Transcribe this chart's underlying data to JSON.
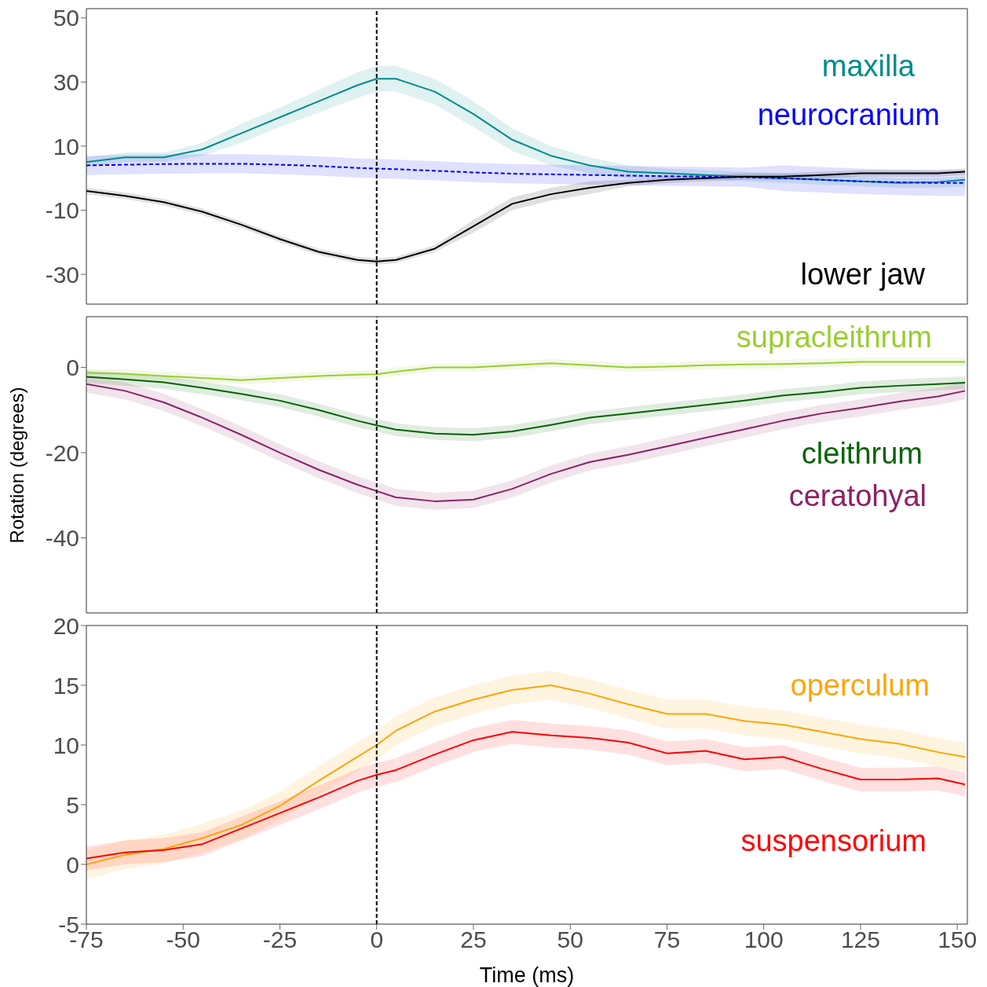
{
  "chart_data": [
    {
      "type": "line",
      "x": [
        -75,
        -65,
        -55,
        -45,
        -35,
        -25,
        -15,
        -5,
        0,
        5,
        15,
        25,
        35,
        45,
        55,
        65,
        75,
        85,
        95,
        105,
        115,
        125,
        135,
        145,
        152
      ],
      "xlim": [
        -75,
        152.6
      ],
      "ylim": [
        -39.3,
        52.9
      ],
      "yticks": [
        50,
        30,
        10,
        -10,
        -30
      ],
      "tick_labels": "y",
      "legend": false,
      "grid": false,
      "ref_lines": [
        {
          "axis": "x",
          "value": 0,
          "color": "#000000",
          "line_style": "dashed"
        }
      ],
      "series": [
        {
          "name": "maxilla",
          "color": "#008b8b",
          "line_style": "solid",
          "values": [
            5,
            6.5,
            6.5,
            9,
            14,
            19,
            24,
            29,
            31,
            31,
            27,
            20,
            12,
            7,
            4,
            2,
            1.5,
            1,
            0.5,
            0,
            -0.5,
            -1,
            -1.5,
            -1.2,
            -0.5
          ],
          "lower": [
            3.5,
            5,
            5,
            7,
            11,
            16,
            20.5,
            25,
            27,
            27,
            23,
            16,
            8.5,
            4,
            1.5,
            0,
            0,
            -0.5,
            -1,
            -1.5,
            -2,
            -2.5,
            -3,
            -3,
            -2.5
          ],
          "upper": [
            6.5,
            8,
            8,
            11,
            17,
            22,
            27.5,
            33,
            35,
            35,
            31,
            24,
            15.5,
            10,
            6.5,
            4,
            3,
            2.5,
            2,
            1.5,
            1,
            0.5,
            0,
            0,
            0.5
          ]
        },
        {
          "name": "neurocranium",
          "color": "#0000ff",
          "line_style": "dashed",
          "values": [
            4,
            4.2,
            4.4,
            4.5,
            4.5,
            4.2,
            3.8,
            3.2,
            3,
            2.8,
            2.3,
            1.8,
            1.4,
            1.2,
            1,
            0.8,
            0.6,
            0.5,
            0.3,
            0,
            -0.5,
            -1,
            -1.3,
            -1.5,
            -1.5
          ],
          "lower": [
            1,
            1.2,
            1.4,
            1.5,
            1.5,
            1.2,
            0.8,
            0.2,
            0,
            -0.2,
            -0.7,
            -1.2,
            -1.6,
            -1.8,
            -2,
            -2.2,
            -2.4,
            -2.5,
            -2.7,
            -4,
            -4.5,
            -5,
            -5.3,
            -5.5,
            -5.5
          ],
          "upper": [
            7,
            7.2,
            7.4,
            7.5,
            7.5,
            7.2,
            6.8,
            6.2,
            6,
            5.8,
            5.3,
            4.8,
            4.4,
            4.2,
            4,
            3.8,
            3.6,
            3.5,
            3.3,
            4,
            3.5,
            3,
            2.7,
            2.5,
            2.5
          ]
        },
        {
          "name": "lower jaw",
          "color": "#000000",
          "line_style": "solid",
          "values": [
            -4,
            -5.5,
            -7.5,
            -10.5,
            -14.5,
            -19,
            -23,
            -25.5,
            -26,
            -25.5,
            -22,
            -15,
            -8,
            -5,
            -3,
            -1.5,
            -0.5,
            0,
            0.5,
            0.5,
            1,
            1.5,
            1.5,
            1.5,
            2
          ],
          "lower": [
            -5,
            -6.5,
            -8.5,
            -11.5,
            -15.5,
            -20,
            -24,
            -26.5,
            -27,
            -26.5,
            -23,
            -17,
            -10,
            -7,
            -5,
            -2.5,
            -1.5,
            -1,
            -0.5,
            -0.5,
            0,
            0.5,
            0.5,
            0.5,
            1
          ],
          "upper": [
            -3,
            -4.5,
            -6.5,
            -9.5,
            -13.5,
            -18,
            -22,
            -24.5,
            -25,
            -24.5,
            -21,
            -13,
            -6,
            -3,
            -1,
            -0.5,
            0.5,
            1,
            1.5,
            1.5,
            2,
            2.5,
            2.5,
            2.5,
            3
          ]
        }
      ]
    },
    {
      "type": "line",
      "ylabel": "Rotation (degrees)",
      "x": [
        -75,
        -65,
        -55,
        -45,
        -35,
        -25,
        -15,
        -5,
        0,
        5,
        15,
        25,
        35,
        45,
        55,
        65,
        75,
        85,
        95,
        105,
        115,
        125,
        135,
        145,
        152
      ],
      "xlim": [
        -75,
        152.6
      ],
      "ylim": [
        -57.6,
        11.9
      ],
      "yticks": [
        0,
        -20,
        -40
      ],
      "tick_labels": "y",
      "legend": false,
      "grid": false,
      "ref_lines": [
        {
          "axis": "x",
          "value": 0,
          "color": "#000000",
          "line_style": "dashed"
        }
      ],
      "series": [
        {
          "name": "supracleithrum",
          "color": "#9acd32",
          "line_style": "solid",
          "values": [
            -1.3,
            -1.5,
            -2,
            -2.5,
            -3,
            -2.5,
            -2,
            -1.7,
            -1.6,
            -1,
            0,
            0,
            0.5,
            1,
            0.5,
            0,
            0.2,
            0.5,
            0.7,
            0.8,
            1,
            1.3,
            1.3,
            1.3,
            1.3
          ],
          "lower": [
            -2.3,
            -2.5,
            -3,
            -3.5,
            -4,
            -3.5,
            -3,
            -2.7,
            -2.6,
            -2,
            -1,
            -1,
            -0.5,
            0,
            -0.5,
            -1,
            -0.8,
            -0.5,
            -0.3,
            -0.2,
            0,
            0.3,
            0.3,
            0.3,
            0.3
          ],
          "upper": [
            -0.3,
            -0.5,
            -1,
            -1.5,
            -2,
            -1.5,
            -1,
            -0.7,
            -0.6,
            0,
            1,
            1,
            1.5,
            2,
            1.5,
            1,
            1.2,
            1.5,
            1.7,
            1.8,
            2,
            2.3,
            2.3,
            2.3,
            2.3
          ]
        },
        {
          "name": "cleithrum",
          "color": "#006400",
          "line_style": "solid",
          "values": [
            -2.2,
            -2.8,
            -3.5,
            -4.8,
            -6.2,
            -7.8,
            -10,
            -12.5,
            -13.6,
            -14.6,
            -15.5,
            -15.8,
            -15,
            -13.5,
            -11.8,
            -10.8,
            -9.8,
            -8.8,
            -7.8,
            -6.6,
            -5.8,
            -4.8,
            -4.3,
            -3.9,
            -3.6
          ],
          "lower": [
            -3.7,
            -4.3,
            -5,
            -6.3,
            -7.7,
            -9.3,
            -11.5,
            -14,
            -15.1,
            -16.1,
            -17,
            -17.3,
            -16.5,
            -15,
            -13.3,
            -12.3,
            -11.3,
            -10.3,
            -9.3,
            -8.1,
            -7.3,
            -6.3,
            -5.8,
            -5.4,
            -5.1
          ],
          "upper": [
            -0.7,
            -1.3,
            -2,
            -3.3,
            -4.7,
            -6.3,
            -8.5,
            -11,
            -12.1,
            -13.1,
            -14,
            -14.3,
            -13.5,
            -12,
            -10.3,
            -9.3,
            -8.3,
            -7.3,
            -6.3,
            -5.1,
            -4.3,
            -3.3,
            -2.8,
            -2.4,
            -2.1
          ]
        },
        {
          "name": "ceratohyal",
          "color": "#8b2266",
          "line_style": "solid",
          "values": [
            -3.9,
            -5.5,
            -8.2,
            -11.8,
            -15.8,
            -20,
            -24,
            -27.5,
            -29,
            -30.5,
            -31.4,
            -31,
            -28.5,
            -25,
            -22.2,
            -20.5,
            -18.5,
            -16.5,
            -14.5,
            -12.5,
            -10.8,
            -9.5,
            -8,
            -6.8,
            -5.5
          ],
          "lower": [
            -5.9,
            -7.5,
            -10.2,
            -13.8,
            -17.8,
            -22,
            -26,
            -29.5,
            -31,
            -32.5,
            -33.4,
            -33,
            -30.5,
            -27,
            -24.2,
            -22.5,
            -20.5,
            -18.5,
            -16.5,
            -14.5,
            -12.8,
            -11.5,
            -10,
            -8.8,
            -7.5
          ],
          "upper": [
            -1.9,
            -3.5,
            -6.2,
            -9.8,
            -13.8,
            -18,
            -22,
            -25.5,
            -27,
            -28.5,
            -29.4,
            -29,
            -26.5,
            -23,
            -20.2,
            -18.5,
            -16.5,
            -14.5,
            -12.5,
            -10.5,
            -8.8,
            -7.5,
            -6,
            -4.8,
            -3.5
          ]
        }
      ]
    },
    {
      "type": "line",
      "xlabel": "Time (ms)",
      "x": [
        -75,
        -65,
        -55,
        -45,
        -35,
        -25,
        -15,
        -5,
        0,
        5,
        15,
        25,
        35,
        45,
        55,
        65,
        75,
        85,
        95,
        105,
        115,
        125,
        135,
        145,
        152
      ],
      "xlim": [
        -75,
        152.6
      ],
      "xticks": [
        -75,
        -50,
        -25,
        0,
        25,
        50,
        75,
        100,
        125,
        150
      ],
      "ylim": [
        -5,
        20
      ],
      "yticks": [
        -5,
        0,
        5,
        10,
        15,
        20
      ],
      "legend": false,
      "grid": false,
      "ref_lines": [
        {
          "axis": "x",
          "value": 0,
          "color": "#000000",
          "line_style": "dashed"
        }
      ],
      "series": [
        {
          "name": "operculum",
          "color": "#ffa500",
          "line_style": "solid",
          "values": [
            0,
            0.8,
            1.3,
            2.2,
            3.3,
            4.9,
            7,
            9,
            10,
            11.2,
            12.8,
            13.8,
            14.6,
            15,
            14.3,
            13.4,
            12.6,
            12.6,
            12,
            11.7,
            11.1,
            10.5,
            10.1,
            9.4,
            9
          ],
          "lower": [
            -1.2,
            -0.4,
            0.1,
            1,
            2.1,
            3.7,
            5.8,
            7.8,
            8.8,
            10,
            11.6,
            12.6,
            13.4,
            13.8,
            13.1,
            12.2,
            11.4,
            11.4,
            10.8,
            10.5,
            9.9,
            9.3,
            8.9,
            8.2,
            7.8
          ],
          "upper": [
            1.2,
            2,
            2.5,
            3.4,
            4.5,
            6.1,
            8.2,
            10.2,
            11.2,
            12.4,
            14,
            15,
            15.8,
            16.2,
            15.5,
            14.6,
            13.8,
            13.8,
            13.2,
            12.9,
            12.3,
            11.7,
            11.3,
            10.6,
            10.2
          ]
        },
        {
          "name": "suspensorium",
          "color": "#ff0000",
          "line_style": "solid",
          "values": [
            0.5,
            1,
            1.2,
            1.7,
            3,
            4.3,
            5.6,
            7,
            7.5,
            7.9,
            9.2,
            10.4,
            11.1,
            10.8,
            10.6,
            10.2,
            9.3,
            9.5,
            8.8,
            9,
            8,
            7.1,
            7.1,
            7.2,
            6.7
          ],
          "lower": [
            -0.5,
            0,
            0.2,
            0.7,
            2,
            3.3,
            4.6,
            6,
            6.5,
            6.9,
            8.2,
            9.4,
            10.1,
            9.8,
            9.6,
            9.2,
            8.3,
            8.5,
            7.8,
            8,
            7,
            6.1,
            6.1,
            6.2,
            5.7
          ],
          "upper": [
            1.5,
            2,
            2.2,
            2.7,
            4,
            5.3,
            6.6,
            8,
            8.5,
            8.9,
            10.2,
            11.4,
            12.1,
            11.8,
            11.6,
            11.2,
            10.3,
            10.5,
            9.8,
            10,
            9,
            8.1,
            8.1,
            8.2,
            7.7
          ]
        }
      ]
    }
  ]
}
